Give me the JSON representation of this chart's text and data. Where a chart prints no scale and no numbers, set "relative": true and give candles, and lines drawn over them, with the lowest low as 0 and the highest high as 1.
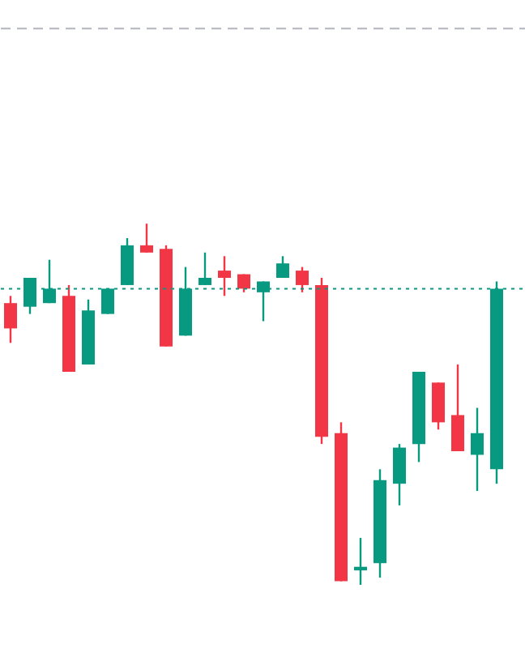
{
  "chart_data": {
    "type": "candlestick",
    "relative": true,
    "categories": [
      null,
      null,
      null,
      null,
      null,
      null,
      null,
      null,
      null,
      null,
      null,
      null,
      null,
      null,
      null,
      null,
      null,
      null,
      null,
      null,
      null,
      null,
      null,
      null,
      null,
      null
    ],
    "ohlc": [
      [
        0.78,
        0.8,
        0.67,
        0.71
      ],
      [
        0.77,
        0.85,
        0.75,
        0.85
      ],
      [
        0.78,
        0.9,
        0.78,
        0.82
      ],
      [
        0.8,
        0.83,
        0.59,
        0.59
      ],
      [
        0.61,
        0.79,
        0.61,
        0.76
      ],
      [
        0.75,
        0.82,
        0.75,
        0.82
      ],
      [
        0.83,
        0.96,
        0.83,
        0.94
      ],
      [
        0.94,
        1.0,
        0.92,
        0.92
      ],
      [
        0.93,
        0.94,
        0.66,
        0.66
      ],
      [
        0.69,
        0.88,
        0.69,
        0.82
      ],
      [
        0.83,
        0.92,
        0.83,
        0.85
      ],
      [
        0.87,
        0.91,
        0.8,
        0.85
      ],
      [
        0.86,
        0.86,
        0.81,
        0.82
      ],
      [
        0.81,
        0.84,
        0.73,
        0.84
      ],
      [
        0.85,
        0.91,
        0.85,
        0.89
      ],
      [
        0.87,
        0.88,
        0.81,
        0.83
      ],
      [
        0.83,
        0.85,
        0.39,
        0.41
      ],
      [
        0.42,
        0.45,
        0.01,
        0.01
      ],
      [
        0.04,
        0.13,
        0.0,
        0.05
      ],
      [
        0.06,
        0.32,
        0.02,
        0.29
      ],
      [
        0.28,
        0.39,
        0.22,
        0.38
      ],
      [
        0.39,
        0.59,
        0.34,
        0.59
      ],
      [
        0.56,
        0.56,
        0.43,
        0.45
      ],
      [
        0.47,
        0.61,
        0.37,
        0.37
      ],
      [
        0.36,
        0.49,
        0.26,
        0.42
      ],
      [
        0.32,
        0.84,
        0.28,
        0.82
      ]
    ],
    "colors": [
      "#f23645",
      "#089981",
      "#089981",
      "#f23645",
      "#089981",
      "#089981",
      "#089981",
      "#f23645",
      "#f23645",
      "#089981",
      "#089981",
      "#f23645",
      "#f23645",
      "#089981",
      "#089981",
      "#f23645",
      "#f23645",
      "#f23645",
      "#089981",
      "#089981",
      "#089981",
      "#089981",
      "#f23645",
      "#f23645",
      "#089981",
      "#089981"
    ],
    "ref_lines": [
      {
        "axis": "y",
        "value": 0.82,
        "color": "#089981",
        "line_style": "dotted"
      },
      {
        "axis": "y",
        "value": 1.54,
        "color": "#b2b5be",
        "line_style": "dashed"
      }
    ],
    "tick_labels": false
  }
}
